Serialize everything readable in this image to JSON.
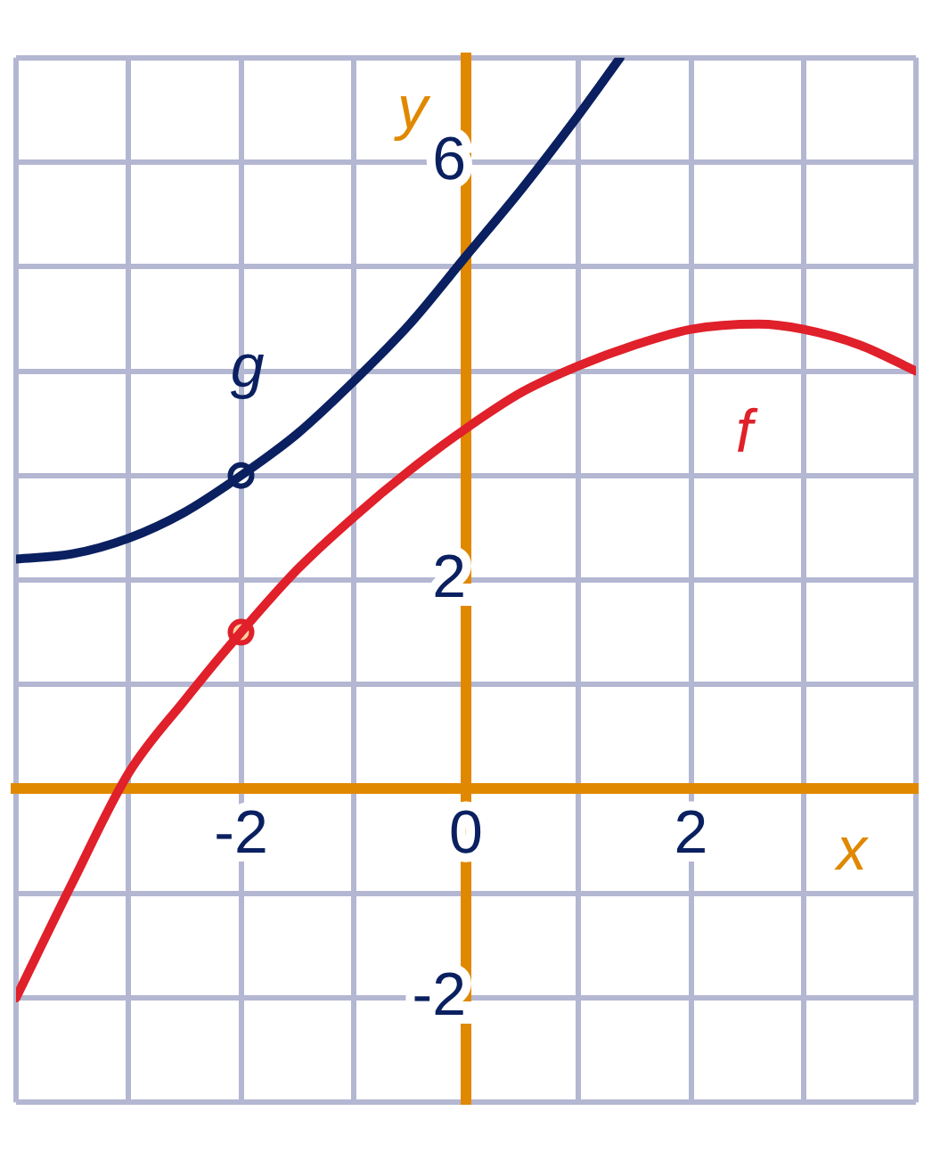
{
  "chart_data": {
    "type": "line",
    "xlabel": "x",
    "ylabel": "y",
    "xlim": [
      -4,
      4
    ],
    "ylim": [
      -3,
      7
    ],
    "xticks": [
      {
        "value": -4,
        "label": null
      },
      {
        "value": -3,
        "label": null
      },
      -2,
      {
        "value": -1,
        "label": null
      },
      0,
      {
        "value": 1,
        "label": null
      },
      2,
      {
        "value": 3,
        "label": null
      },
      {
        "value": 4,
        "label": null
      }
    ],
    "yticks": [
      {
        "value": -3,
        "label": null
      },
      -2,
      {
        "value": -1,
        "label": null
      },
      {
        "value": 0,
        "label": null
      },
      {
        "value": 1,
        "label": null
      },
      2,
      {
        "value": 3,
        "label": null
      },
      {
        "value": 4,
        "label": null
      },
      {
        "value": 5,
        "label": null
      },
      6,
      {
        "value": 7,
        "label": null
      }
    ],
    "grid": true,
    "legend": false,
    "series": [
      {
        "name": "g",
        "marker": "none",
        "color": "#0a2060",
        "x": [
          -4,
          -3.5,
          -3,
          -2.5,
          -2,
          -1.5,
          -1,
          -0.5,
          0,
          0.5,
          1,
          1.37
        ],
        "values": [
          2.2,
          2.25,
          2.4,
          2.65,
          3,
          3.4,
          3.9,
          4.45,
          5.1,
          5.75,
          6.45,
          7
        ]
      },
      {
        "name": "f",
        "marker": "none",
        "color": "#e0202a",
        "x": [
          -4,
          -3.5,
          -3,
          -2.5,
          -2,
          -1.5,
          -1,
          -0.5,
          0,
          0.5,
          1,
          1.5,
          2,
          2.6,
          3,
          3.5,
          4
        ],
        "values": [
          -2,
          -0.9,
          0.15,
          0.85,
          1.5,
          2.1,
          2.6,
          3.05,
          3.45,
          3.8,
          4.05,
          4.25,
          4.4,
          4.45,
          4.4,
          4.25,
          4
        ]
      },
      {
        "type": "scatter",
        "marker": "circle",
        "color": "#0a2060",
        "x": [
          -2
        ],
        "values": [
          3
        ]
      },
      {
        "type": "scatter",
        "marker": "circle",
        "color": "#e0202a",
        "x": [
          -2
        ],
        "values": [
          1.5
        ]
      }
    ]
  }
}
